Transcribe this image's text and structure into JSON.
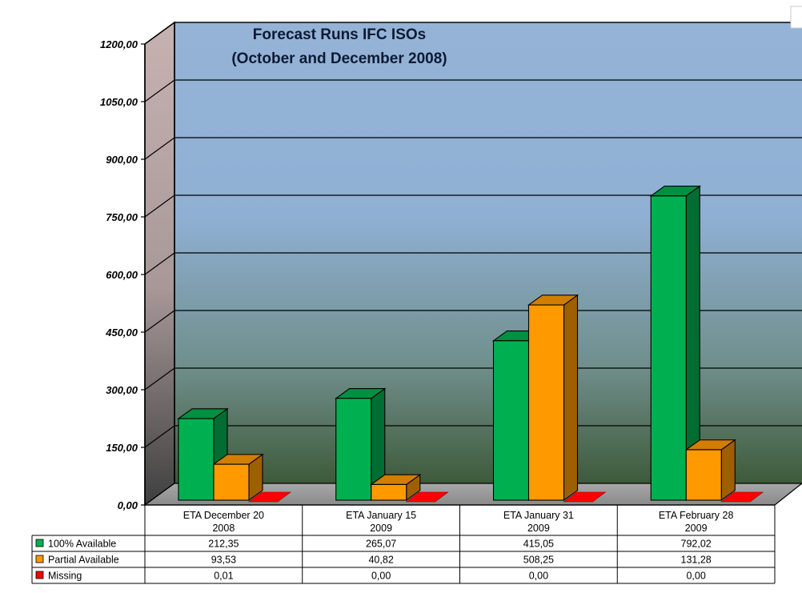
{
  "chart_data": {
    "type": "bar",
    "title": "Forecast Runs  IFC ISOs",
    "subtitle": "(October and December 2008)",
    "xlabel": "",
    "ylabel": "",
    "ylim": [
      0,
      1200
    ],
    "yticks": [
      "0,00",
      "150,00",
      "300,00",
      "450,00",
      "600,00",
      "750,00",
      "900,00",
      "1050,00",
      "1200,00"
    ],
    "grid": true,
    "legend_position": "data-table-left",
    "categories": [
      {
        "line1": "ETA December 20",
        "line2": "2008"
      },
      {
        "line1": "ETA January 15",
        "line2": "2009"
      },
      {
        "line1": "ETA January 31",
        "line2": "2009"
      },
      {
        "line1": "ETA February 28",
        "line2": "2009"
      }
    ],
    "series": [
      {
        "name": "100% Available",
        "color": "#00b050",
        "values": [
          212.35,
          265.07,
          415.05,
          792.02
        ],
        "labels": [
          "212,35",
          "265,07",
          "415,05",
          "792,02"
        ]
      },
      {
        "name": "Partial  Available",
        "color": "#ff9900",
        "values": [
          93.53,
          40.82,
          508.25,
          131.28
        ],
        "labels": [
          "93,53",
          "40,82",
          "508,25",
          "131,28"
        ]
      },
      {
        "name": "Missing",
        "color": "#ff0000",
        "values": [
          0.01,
          0.0,
          0.0,
          0.0
        ],
        "labels": [
          "0,01",
          "0,00",
          "0,00",
          "0,00"
        ]
      }
    ]
  }
}
